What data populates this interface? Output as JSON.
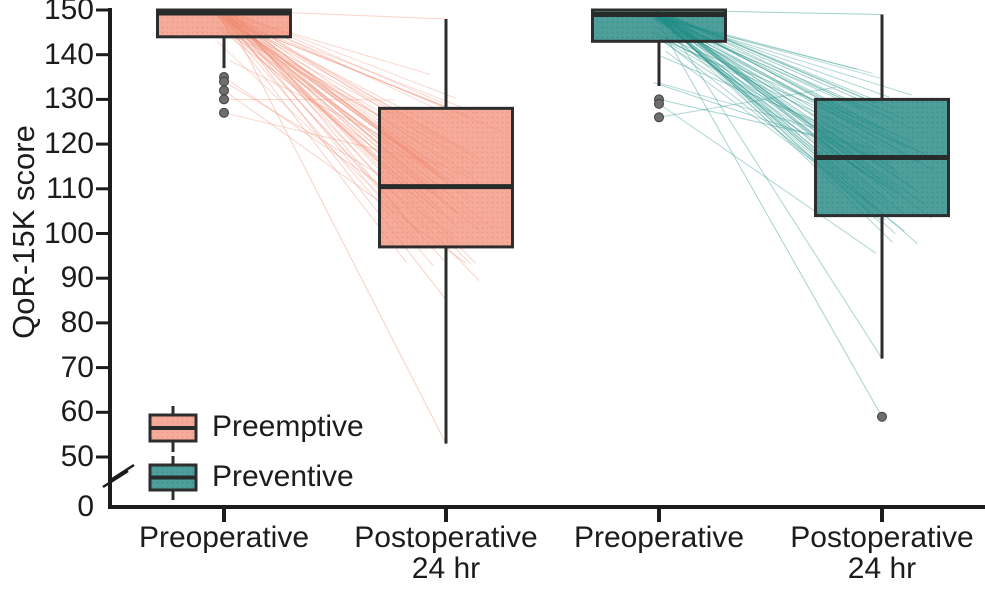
{
  "chart_data": {
    "type": "boxplot",
    "title": "",
    "ylabel": "QoR-15K score",
    "y_axis": {
      "ticks": [
        "150",
        "140",
        "130",
        "120",
        "110",
        "100",
        "90",
        "80",
        "70",
        "60",
        "50",
        "0"
      ],
      "tick_values": [
        150,
        140,
        130,
        120,
        110,
        100,
        90,
        80,
        70,
        60,
        50,
        0
      ],
      "axis_break_between": [
        "50",
        "0"
      ],
      "drawn_range": [
        50,
        150
      ]
    },
    "x_axis": {
      "labels": [
        {
          "line1": "Preoperative",
          "line2": ""
        },
        {
          "line1": "Postoperative",
          "line2": "24 hr"
        },
        {
          "line1": "Preoperative",
          "line2": ""
        },
        {
          "line1": "Postoperative",
          "line2": "24 hr"
        }
      ]
    },
    "legend": {
      "items": [
        {
          "label": "Preemptive",
          "color": "#F6AB9A"
        },
        {
          "label": "Preventive",
          "color": "#4E9E9B"
        }
      ],
      "position": "bottom-left-inside"
    },
    "groups": [
      {
        "name": "Preemptive",
        "box_color": "#F6AB9A",
        "box_dot_texture_color": "#ED9382",
        "line_color": "#EF8D74",
        "boxes": [
          {
            "x_label": "Preoperative",
            "q1": 144,
            "median": 150,
            "q3": 150,
            "whisker_low": 137,
            "whisker_high": 150,
            "outliers": [
              135,
              134,
              132,
              130,
              127
            ]
          },
          {
            "x_label": "Postoperative 24 hr",
            "q1": 97,
            "median": 110.5,
            "q3": 128,
            "whisker_low": 53,
            "whisker_high": 148,
            "outliers": []
          }
        ]
      },
      {
        "name": "Preventive",
        "box_color": "#4E9E9B",
        "box_dot_texture_color": "#3A8F8B",
        "line_color": "#1D8D84",
        "boxes": [
          {
            "x_label": "Preoperative",
            "q1": 143,
            "median": 149,
            "q3": 150,
            "whisker_low": 133,
            "whisker_high": 150,
            "outliers": [
              130,
              129,
              126
            ]
          },
          {
            "x_label": "Postoperative 24 hr",
            "q1": 104,
            "median": 117,
            "q3": 130,
            "whisker_low": 72,
            "whisker_high": 149,
            "outliers": [
              59
            ]
          }
        ]
      }
    ],
    "paired_lines": {
      "style": "per-subject pre-to-post connector lines (spaghetti)",
      "approx_count_per_group": 68
    },
    "palette": {
      "axis_color": "#1c1c1c",
      "box_border_color": "#2d2d2d",
      "median_color": "#272b2a",
      "outlier_fill": "#6e6e6e",
      "outlier_stroke": "#404040",
      "background": "#ffffff"
    }
  }
}
